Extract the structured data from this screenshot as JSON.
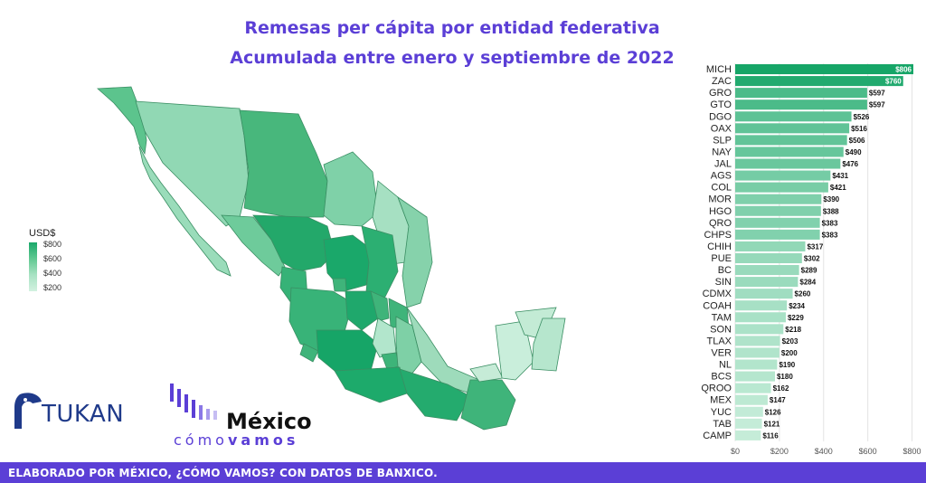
{
  "title_line1": "Remesas per cápita por entidad federativa",
  "title_line2": "Acumulada entre enero y septiembre de 2022",
  "legend": {
    "title": "USD$",
    "ticks": [
      "$800",
      "$600",
      "$400",
      "$200"
    ]
  },
  "footer_text": "ELABORADO POR MÉXICO, ¿CÓMO VAMOS? CON DATOS DE BANXICO.",
  "logos": {
    "tukan": "TUKAN",
    "mexico": "México",
    "como": "cómo",
    "vamos": "vamos"
  },
  "colors": {
    "accent": "#5b3fd6",
    "green_high": "#1aa86a",
    "green_low": "#c9eedb"
  },
  "chart_data": {
    "type": "bar",
    "orientation": "horizontal",
    "categories": [
      "MICH",
      "ZAC",
      "GRO",
      "GTO",
      "DGO",
      "OAX",
      "SLP",
      "NAY",
      "JAL",
      "AGS",
      "COL",
      "MOR",
      "HGO",
      "QRO",
      "CHPS",
      "CHIH",
      "PUE",
      "BC",
      "SIN",
      "CDMX",
      "COAH",
      "TAM",
      "SON",
      "TLAX",
      "VER",
      "NL",
      "BCS",
      "QROO",
      "MEX",
      "YUC",
      "TAB",
      "CAMP"
    ],
    "values": [
      806,
      760,
      597,
      597,
      526,
      516,
      506,
      490,
      476,
      431,
      421,
      390,
      388,
      383,
      383,
      317,
      302,
      289,
      284,
      260,
      234,
      229,
      218,
      203,
      200,
      190,
      180,
      162,
      147,
      126,
      121,
      116
    ],
    "value_labels": [
      "$806",
      "$760",
      "$597",
      "$597",
      "$526",
      "$516",
      "$506",
      "$490",
      "$476",
      "$431",
      "$421",
      "$390",
      "$388",
      "$383",
      "$383",
      "$317",
      "$302",
      "$289",
      "$284",
      "$260",
      "$234",
      "$229",
      "$218",
      "$203",
      "$200",
      "$190",
      "$180",
      "$162",
      "$147",
      "$126",
      "$121",
      "$116"
    ],
    "x_ticks": [
      "$0",
      "$200",
      "$400",
      "$600",
      "$800"
    ],
    "xlim": [
      0,
      806
    ],
    "grid": true
  }
}
